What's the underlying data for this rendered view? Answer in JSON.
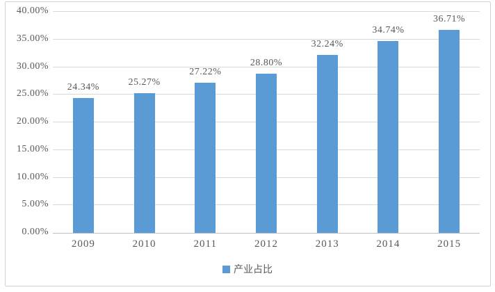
{
  "chart_data": {
    "type": "bar",
    "categories": [
      "2009",
      "2010",
      "2011",
      "2012",
      "2013",
      "2014",
      "2015"
    ],
    "series": [
      {
        "name": "产业占比",
        "values": [
          24.34,
          25.27,
          27.22,
          28.8,
          32.24,
          34.74,
          36.71
        ]
      }
    ],
    "data_labels": [
      "24.34%",
      "25.27%",
      "27.22%",
      "28.80%",
      "32.24%",
      "34.74%",
      "36.71%"
    ],
    "title": "",
    "xlabel": "",
    "ylabel": "",
    "ylim": [
      0,
      40
    ],
    "y_tick_step": 5,
    "y_tick_labels": [
      "0.00%",
      "5.00%",
      "10.00%",
      "15.00%",
      "20.00%",
      "25.00%",
      "30.00%",
      "35.00%",
      "40.00%"
    ],
    "grid": true,
    "legend_position": "bottom",
    "colors": {
      "bar": "#5b9bd5",
      "gridline": "#d9d9d9",
      "axis_line": "#bfbfbf",
      "text": "#595959",
      "frame_border": "#d2d2d2",
      "background": "#ffffff"
    }
  }
}
